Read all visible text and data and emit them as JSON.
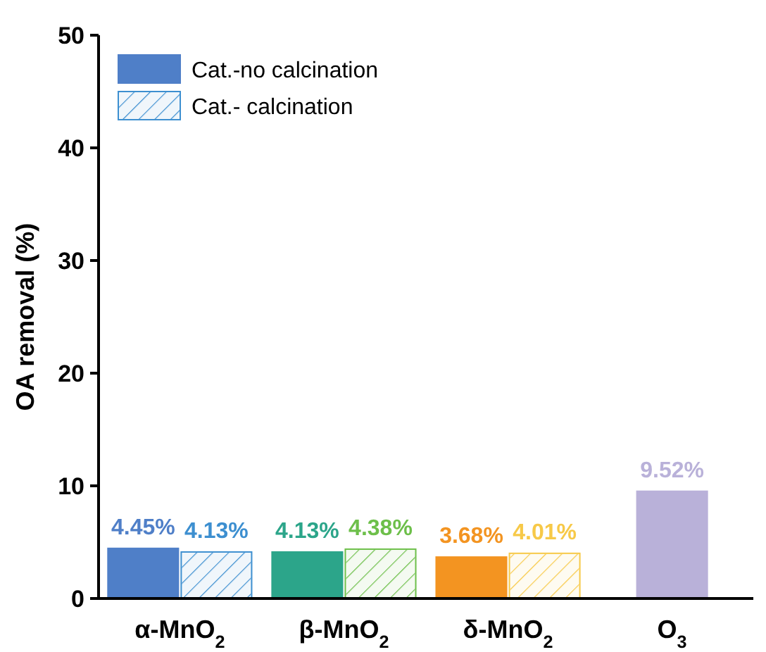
{
  "chart_data": {
    "type": "bar",
    "ylabel": "OA removal (%)",
    "categories": [
      "α-MnO$_{2}$",
      "β-MnO$_{2}$",
      "δ-MnO$_{2}$",
      "O$_{3}$"
    ],
    "ylim": [
      0,
      50
    ],
    "yticks": [
      0,
      10,
      20,
      30,
      40,
      50
    ],
    "grid": false,
    "legend": "top left",
    "series": [
      {
        "name": "Cat.-no calcination",
        "color": "#4f7fc8",
        "colors": [
          "#4f7fc8",
          "#2ca58a",
          "#f39421",
          "#b9b1d9"
        ],
        "values": [
          4.45,
          4.13,
          3.68,
          9.52
        ],
        "value_labels": [
          "4.45%",
          "4.13%",
          "3.68%",
          "9.52%"
        ]
      },
      {
        "name": "Cat.- calcination",
        "color": "#3d8fd0",
        "colors": [
          "#3d8fd0",
          "#6dbf4a",
          "#f7c948",
          null
        ],
        "values": [
          4.13,
          4.38,
          4.01,
          null
        ],
        "value_labels": [
          "4.13%",
          "4.38%",
          "4.01%",
          null
        ]
      }
    ]
  }
}
